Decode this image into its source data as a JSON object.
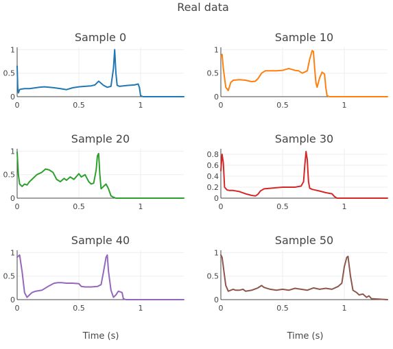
{
  "figure": {
    "title": "Real data",
    "xlabel": "Time (s)"
  },
  "chart_data": [
    {
      "type": "line",
      "title": "Sample 0",
      "color": "#1f77b4",
      "xlim": [
        0,
        1.35
      ],
      "ylim": [
        0,
        1.05
      ],
      "xticks": [
        {
          "v": 0,
          "label": "0"
        },
        {
          "v": 0.5,
          "label": "0.5"
        },
        {
          "v": 1,
          "label": "1"
        }
      ],
      "yticks": [
        {
          "v": 0,
          "label": "0"
        },
        {
          "v": 0.5,
          "label": "0.5"
        },
        {
          "v": 1,
          "label": "1"
        }
      ],
      "x": [
        0,
        0.005,
        0.01,
        0.02,
        0.03,
        0.06,
        0.1,
        0.15,
        0.18,
        0.22,
        0.26,
        0.3,
        0.35,
        0.4,
        0.45,
        0.5,
        0.55,
        0.6,
        0.63,
        0.66,
        0.7,
        0.73,
        0.76,
        0.78,
        0.79,
        0.8,
        0.81,
        0.83,
        0.86,
        0.9,
        0.95,
        0.98,
        0.99,
        1.0,
        1.02,
        1.35
      ],
      "y": [
        0.65,
        0.2,
        0.08,
        0.15,
        0.16,
        0.17,
        0.17,
        0.19,
        0.2,
        0.21,
        0.2,
        0.19,
        0.17,
        0.15,
        0.19,
        0.21,
        0.22,
        0.23,
        0.25,
        0.33,
        0.24,
        0.2,
        0.22,
        0.6,
        1.0,
        0.5,
        0.24,
        0.22,
        0.23,
        0.24,
        0.25,
        0.27,
        0.2,
        0.02,
        0,
        0
      ]
    },
    {
      "type": "line",
      "title": "Sample 10",
      "color": "#ff7f0e",
      "xlim": [
        0,
        1.35
      ],
      "ylim": [
        0,
        1.05
      ],
      "xticks": [
        {
          "v": 0,
          "label": "0"
        },
        {
          "v": 0.5,
          "label": "0.5"
        },
        {
          "v": 1,
          "label": "1"
        }
      ],
      "yticks": [
        {
          "v": 0,
          "label": "0"
        },
        {
          "v": 0.5,
          "label": "0.5"
        },
        {
          "v": 1,
          "label": "1"
        }
      ],
      "x": [
        0,
        0.01,
        0.02,
        0.04,
        0.06,
        0.08,
        0.1,
        0.15,
        0.2,
        0.25,
        0.28,
        0.3,
        0.33,
        0.36,
        0.4,
        0.45,
        0.5,
        0.55,
        0.6,
        0.63,
        0.66,
        0.7,
        0.72,
        0.74,
        0.75,
        0.76,
        0.77,
        0.78,
        0.8,
        0.82,
        0.84,
        0.85,
        0.86,
        0.88,
        1.35
      ],
      "y": [
        0.85,
        0.9,
        0.6,
        0.2,
        0.13,
        0.3,
        0.35,
        0.36,
        0.35,
        0.32,
        0.33,
        0.38,
        0.5,
        0.55,
        0.55,
        0.55,
        0.56,
        0.6,
        0.56,
        0.55,
        0.5,
        0.55,
        0.8,
        0.98,
        0.96,
        0.6,
        0.3,
        0.2,
        0.4,
        0.52,
        0.48,
        0.2,
        0.02,
        0,
        0
      ]
    },
    {
      "type": "line",
      "title": "Sample 20",
      "color": "#2ca02c",
      "xlim": [
        0,
        1.35
      ],
      "ylim": [
        0,
        1.05
      ],
      "xticks": [
        {
          "v": 0,
          "label": "0"
        },
        {
          "v": 0.5,
          "label": "0.5"
        },
        {
          "v": 1,
          "label": "1"
        }
      ],
      "yticks": [
        {
          "v": 0,
          "label": "0"
        },
        {
          "v": 0.5,
          "label": "0.5"
        },
        {
          "v": 1,
          "label": "1"
        }
      ],
      "x": [
        0,
        0.01,
        0.02,
        0.04,
        0.06,
        0.08,
        0.1,
        0.12,
        0.14,
        0.16,
        0.2,
        0.23,
        0.26,
        0.29,
        0.32,
        0.35,
        0.38,
        0.4,
        0.43,
        0.46,
        0.5,
        0.52,
        0.55,
        0.58,
        0.6,
        0.62,
        0.64,
        0.65,
        0.66,
        0.67,
        0.68,
        0.7,
        0.72,
        0.74,
        0.76,
        0.78,
        0.8,
        1.35
      ],
      "y": [
        0.98,
        0.5,
        0.3,
        0.25,
        0.3,
        0.28,
        0.35,
        0.4,
        0.45,
        0.5,
        0.55,
        0.62,
        0.6,
        0.55,
        0.4,
        0.35,
        0.42,
        0.38,
        0.45,
        0.4,
        0.52,
        0.45,
        0.5,
        0.35,
        0.3,
        0.32,
        0.6,
        0.9,
        0.95,
        0.5,
        0.2,
        0.25,
        0.3,
        0.2,
        0.05,
        0.02,
        0,
        0
      ]
    },
    {
      "type": "line",
      "title": "Sample 30",
      "color": "#d62728",
      "xlim": [
        0,
        1.35
      ],
      "ylim": [
        0,
        0.9
      ],
      "xticks": [
        {
          "v": 0,
          "label": "0"
        },
        {
          "v": 0.5,
          "label": "0.5"
        },
        {
          "v": 1,
          "label": "1"
        }
      ],
      "yticks": [
        {
          "v": 0,
          "label": "0"
        },
        {
          "v": 0.2,
          "label": "0.2"
        },
        {
          "v": 0.4,
          "label": "0.4"
        },
        {
          "v": 0.6,
          "label": "0.6"
        },
        {
          "v": 0.8,
          "label": "0.8"
        }
      ],
      "x": [
        0,
        0.01,
        0.02,
        0.03,
        0.05,
        0.07,
        0.1,
        0.15,
        0.2,
        0.25,
        0.28,
        0.3,
        0.32,
        0.35,
        0.4,
        0.45,
        0.5,
        0.55,
        0.6,
        0.65,
        0.67,
        0.68,
        0.69,
        0.7,
        0.71,
        0.72,
        0.74,
        0.8,
        0.85,
        0.9,
        0.92,
        0.94,
        1.35
      ],
      "y": [
        0.5,
        0.8,
        0.65,
        0.2,
        0.15,
        0.14,
        0.14,
        0.12,
        0.08,
        0.05,
        0.04,
        0.07,
        0.13,
        0.17,
        0.18,
        0.19,
        0.2,
        0.2,
        0.2,
        0.22,
        0.3,
        0.6,
        0.85,
        0.7,
        0.3,
        0.18,
        0.16,
        0.13,
        0.1,
        0.08,
        0.03,
        0,
        0
      ]
    },
    {
      "type": "line",
      "title": "Sample 40",
      "color": "#9467bd",
      "xlim": [
        0,
        1.35
      ],
      "ylim": [
        0,
        1.05
      ],
      "xticks": [
        {
          "v": 0,
          "label": "0"
        },
        {
          "v": 0.5,
          "label": "0.5"
        },
        {
          "v": 1,
          "label": "1"
        }
      ],
      "yticks": [
        {
          "v": 0,
          "label": "0"
        },
        {
          "v": 0.5,
          "label": "0.5"
        },
        {
          "v": 1,
          "label": "1"
        }
      ],
      "x": [
        0,
        0.02,
        0.04,
        0.06,
        0.08,
        0.1,
        0.12,
        0.15,
        0.2,
        0.25,
        0.3,
        0.33,
        0.36,
        0.4,
        0.45,
        0.5,
        0.52,
        0.55,
        0.6,
        0.65,
        0.68,
        0.7,
        0.72,
        0.73,
        0.74,
        0.76,
        0.78,
        0.8,
        0.82,
        0.85,
        0.86,
        0.88,
        1.35
      ],
      "y": [
        0.9,
        0.95,
        0.6,
        0.15,
        0.05,
        0.1,
        0.15,
        0.18,
        0.2,
        0.28,
        0.35,
        0.36,
        0.36,
        0.35,
        0.35,
        0.34,
        0.28,
        0.27,
        0.27,
        0.28,
        0.32,
        0.6,
        0.9,
        0.95,
        0.6,
        0.2,
        0.05,
        0.1,
        0.18,
        0.15,
        0.02,
        0,
        0
      ]
    },
    {
      "type": "line",
      "title": "Sample 50",
      "color": "#8c564b",
      "xlim": [
        0,
        1.35
      ],
      "ylim": [
        0,
        1.05
      ],
      "xticks": [
        {
          "v": 0,
          "label": "0"
        },
        {
          "v": 0.5,
          "label": "0.5"
        },
        {
          "v": 1,
          "label": "1"
        }
      ],
      "yticks": [
        {
          "v": 0,
          "label": "0"
        },
        {
          "v": 0.5,
          "label": "0.5"
        },
        {
          "v": 1,
          "label": "1"
        }
      ],
      "x": [
        0,
        0.01,
        0.02,
        0.04,
        0.06,
        0.08,
        0.1,
        0.12,
        0.15,
        0.18,
        0.2,
        0.25,
        0.3,
        0.33,
        0.35,
        0.4,
        0.45,
        0.5,
        0.55,
        0.6,
        0.65,
        0.7,
        0.75,
        0.8,
        0.85,
        0.9,
        0.95,
        0.98,
        1.0,
        1.02,
        1.03,
        1.05,
        1.07,
        1.1,
        1.12,
        1.15,
        1.18,
        1.2,
        1.22,
        1.35
      ],
      "y": [
        0.95,
        0.9,
        0.7,
        0.3,
        0.18,
        0.2,
        0.22,
        0.2,
        0.2,
        0.22,
        0.18,
        0.2,
        0.25,
        0.3,
        0.26,
        0.22,
        0.2,
        0.22,
        0.2,
        0.24,
        0.22,
        0.2,
        0.25,
        0.22,
        0.24,
        0.22,
        0.28,
        0.35,
        0.7,
        0.9,
        0.92,
        0.5,
        0.2,
        0.15,
        0.1,
        0.12,
        0.05,
        0.08,
        0.02,
        0
      ]
    }
  ]
}
